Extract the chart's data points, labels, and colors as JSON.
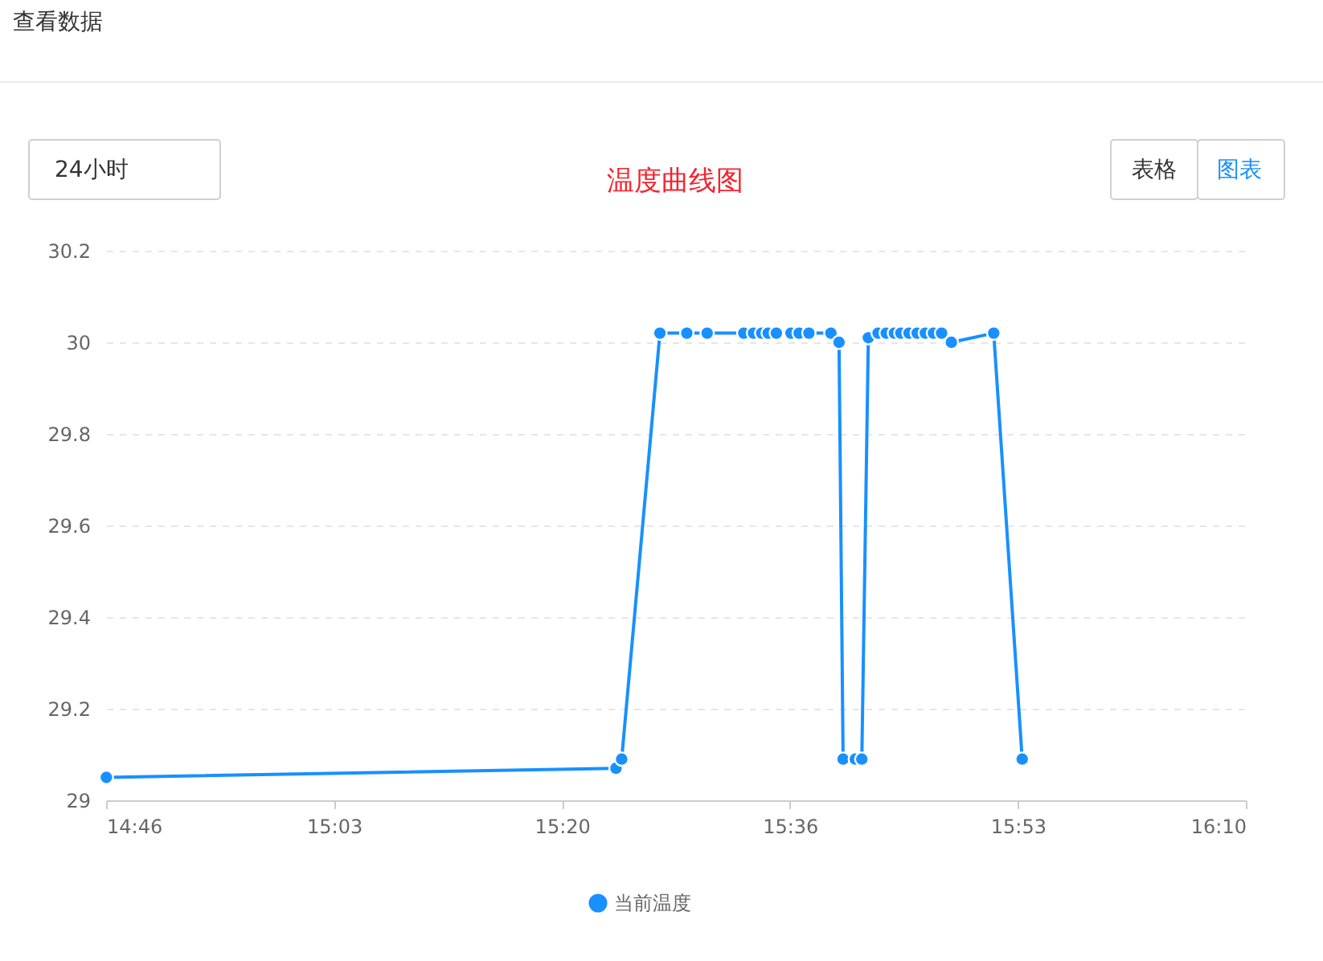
{
  "chart_data": {
    "type": "line",
    "title": "温度曲线图",
    "annotations": [
      "查看数据",
      "24小时",
      "表格",
      "图表"
    ],
    "x": [
      14.767,
      15.393,
      15.4,
      15.447,
      15.48,
      15.505,
      15.55,
      15.562,
      15.572,
      15.58,
      15.59,
      15.608,
      15.618,
      15.63,
      15.657,
      15.667,
      15.672,
      15.687,
      15.695,
      15.703,
      15.715,
      15.725,
      15.735,
      15.743,
      15.753,
      15.763,
      15.773,
      15.783,
      15.793,
      15.805,
      15.857,
      15.892
    ],
    "series": [
      {
        "name": "当前温度",
        "color": "#1890ff",
        "values": [
          29.05,
          29.07,
          29.09,
          30.02,
          30.02,
          30.02,
          30.02,
          30.02,
          30.02,
          30.02,
          30.02,
          30.02,
          30.02,
          30.02,
          30.02,
          30.0,
          29.09,
          29.09,
          29.09,
          30.01,
          30.02,
          30.02,
          30.02,
          30.02,
          30.02,
          30.02,
          30.02,
          30.02,
          30.02,
          30.0,
          30.02,
          29.09
        ]
      }
    ],
    "xlim": [
      14.7667,
      16.1667
    ],
    "xticks": [
      {
        "value": 14.7667,
        "label": "14:46"
      },
      {
        "value": 15.0467,
        "label": "15:03"
      },
      {
        "value": 15.3267,
        "label": "15:20"
      },
      {
        "value": 15.6067,
        "label": "15:36"
      },
      {
        "value": 15.8867,
        "label": "15:53"
      },
      {
        "value": 16.1667,
        "label": "16:10"
      }
    ],
    "ylim": [
      29,
      30.2
    ],
    "yticks": [
      29,
      29.2,
      29.4,
      29.6,
      29.8,
      30,
      30.2
    ],
    "grid": "y",
    "legend": "bottom",
    "marker": "circle",
    "line_style": "solid"
  }
}
